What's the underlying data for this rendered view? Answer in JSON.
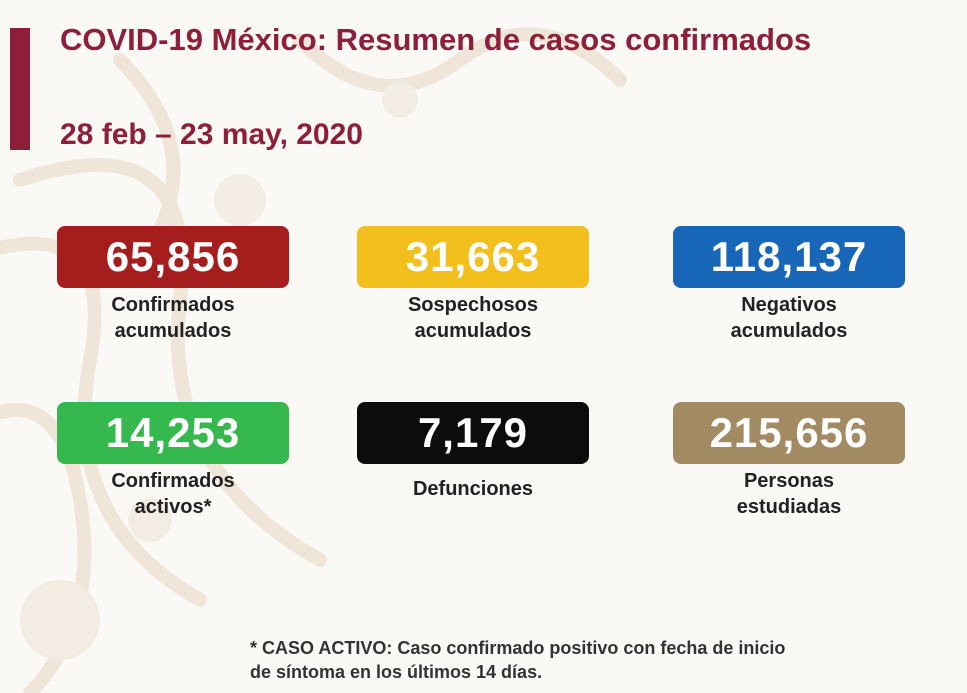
{
  "header": {
    "title": "COVID-19 México: Resumen de casos confirmados",
    "date_range": "28 feb – 23 may, 2020"
  },
  "stats": [
    {
      "value": "65,856",
      "label": "Confirmados\nacumulados",
      "color": "#a51d1d"
    },
    {
      "value": "31,663",
      "label": "Sospechosos\nacumulados",
      "color": "#f2bf1c"
    },
    {
      "value": "118,137",
      "label": "Negativos\nacumulados",
      "color": "#1866b7"
    },
    {
      "value": "14,253",
      "label": "Confirmados\nactivos*",
      "color": "#35b84d"
    },
    {
      "value": "7,179",
      "label": "Defunciones",
      "color": "#0c0c0c"
    },
    {
      "value": "215,656",
      "label": "Personas\nestudiadas",
      "color": "#a28a63"
    }
  ],
  "footnote": "* CASO ACTIVO: Caso confirmado positivo con fecha de inicio\nde síntoma en los últimos 14 días.",
  "colors": {
    "title": "#8e1f3a",
    "accent_bar": "#8e1f3a"
  }
}
